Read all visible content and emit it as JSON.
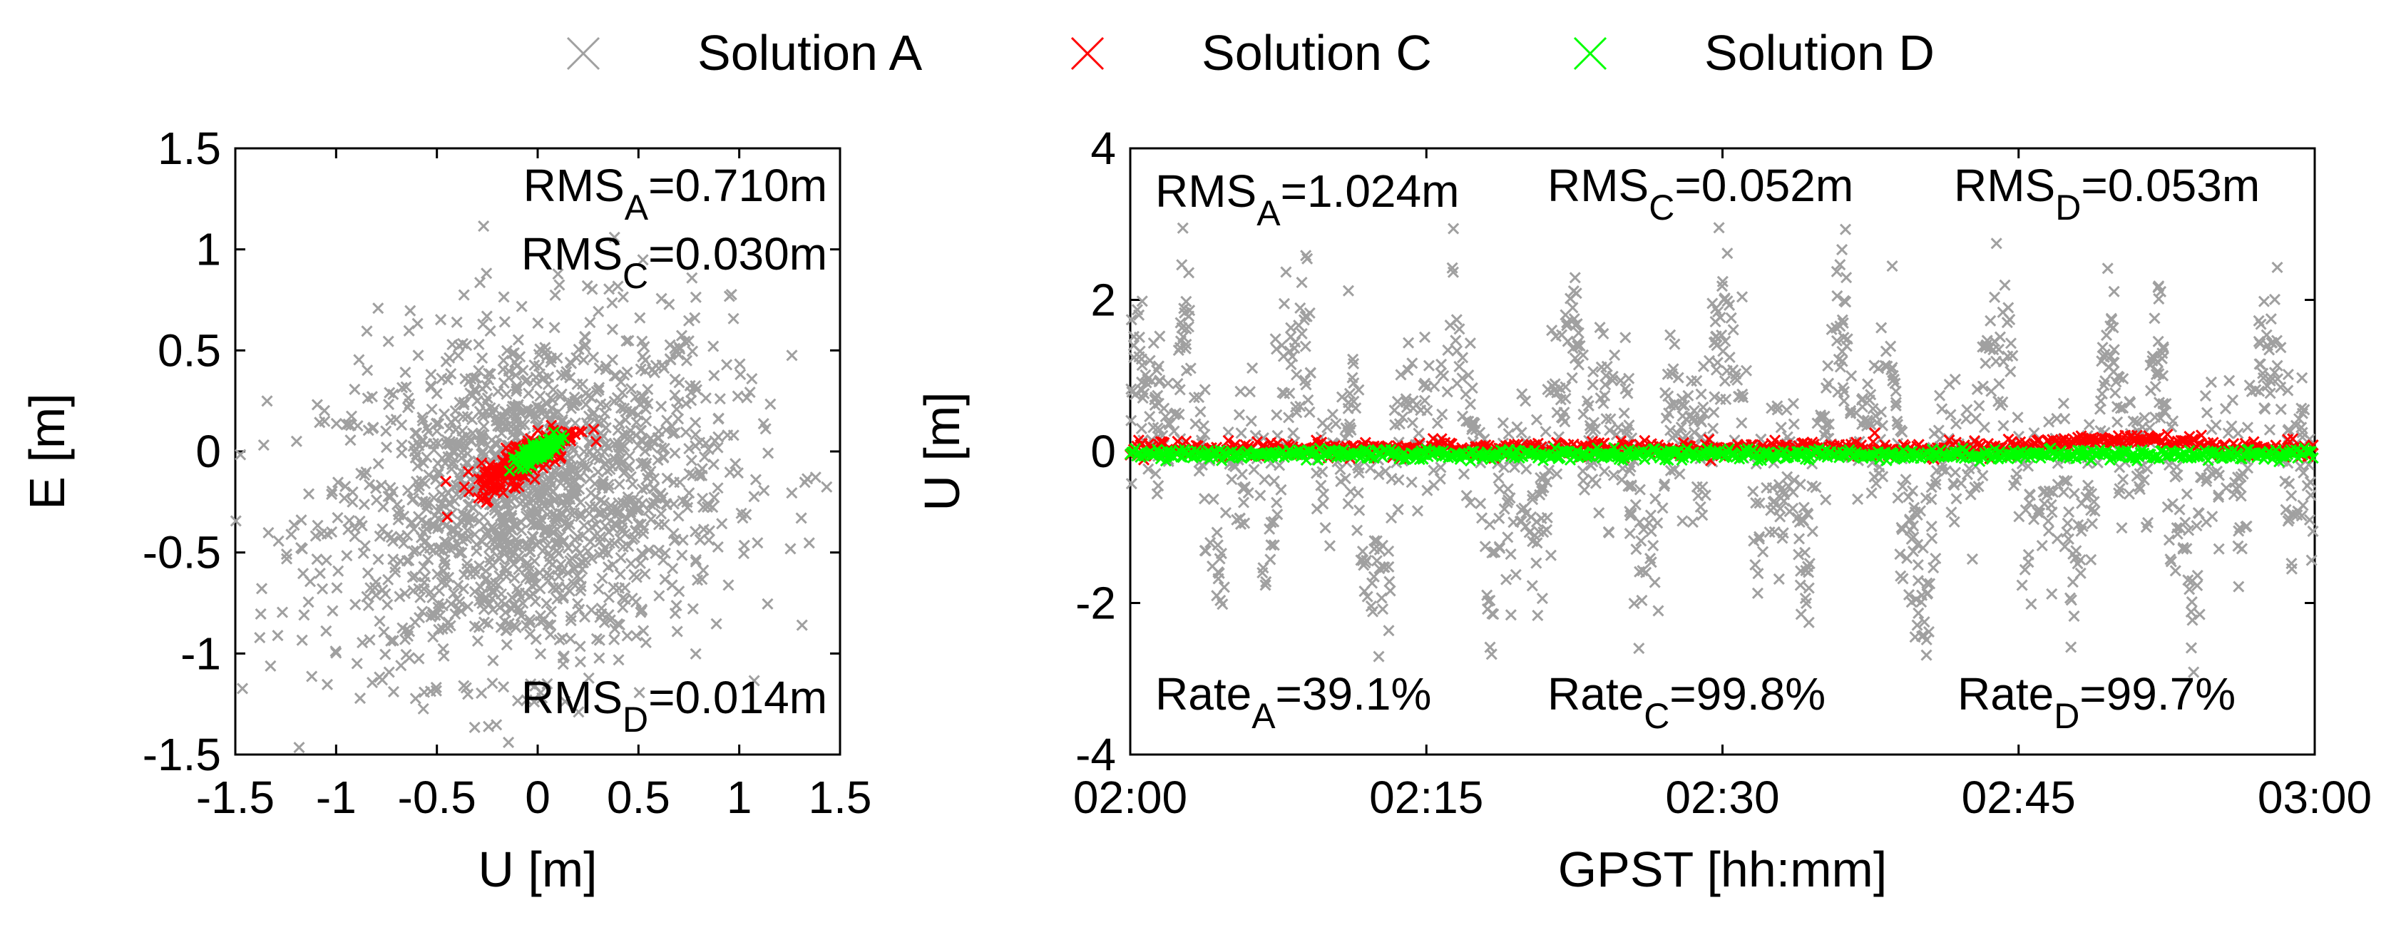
{
  "legend": {
    "entries": [
      {
        "label": "Solution A",
        "color": "#a0a0a0",
        "marker": "x"
      },
      {
        "label": "Solution C",
        "color": "#ff0000",
        "marker": "x"
      },
      {
        "label": "Solution D",
        "color": "#00ff00",
        "marker": "x"
      }
    ]
  },
  "chart_data": [
    {
      "type": "scatter",
      "panel": "left",
      "xlabel": "U [m]",
      "ylabel": "E [m]",
      "xlim": [
        -1.5,
        1.5
      ],
      "ylim": [
        -1.5,
        1.5
      ],
      "xticks": [
        -1.5,
        -1,
        -0.5,
        0,
        0.5,
        1,
        1.5
      ],
      "xtick_labels": [
        "-1.5",
        "-1",
        "-0.5",
        "0",
        "0.5",
        "1",
        "1.5"
      ],
      "yticks": [
        -1.5,
        -1,
        -0.5,
        0,
        0.5,
        1,
        1.5
      ],
      "ytick_labels": [
        "-1.5",
        "-1",
        "-0.5",
        "0",
        "0.5",
        "1",
        "1.5"
      ],
      "grid": false,
      "series": [
        {
          "name": "Solution A",
          "color": "#a0a0a0",
          "spread_u": 0.5,
          "spread_e": 0.42,
          "center_u": -0.05,
          "center_e": -0.22
        },
        {
          "name": "Solution C",
          "color": "#ff0000",
          "spread_u": 0.12,
          "spread_e": 0.05,
          "center_u": -0.05,
          "center_e": -0.03
        },
        {
          "name": "Solution D",
          "color": "#00ff00",
          "spread_u": 0.05,
          "spread_e": 0.02,
          "center_u": 0.0,
          "center_e": 0.0
        }
      ],
      "annotations": [
        {
          "prefix": "RMS",
          "sub": "A",
          "suffix": "=0.710m",
          "pos": "top-right"
        },
        {
          "prefix": "RMS",
          "sub": "C",
          "suffix": "=0.030m",
          "pos": "top-right-2"
        },
        {
          "prefix": "RMS",
          "sub": "D",
          "suffix": "=0.014m",
          "pos": "bottom-right"
        }
      ]
    },
    {
      "type": "scatter",
      "panel": "right",
      "xlabel": "GPST [hh:mm]",
      "ylabel": "U [m]",
      "xlim": [
        0,
        60
      ],
      "ylim": [
        -4,
        4
      ],
      "xticks": [
        0,
        15,
        30,
        45,
        60
      ],
      "xtick_labels": [
        "02:00",
        "02:15",
        "02:30",
        "02:45",
        "03:00"
      ],
      "yticks": [
        -4,
        -2,
        0,
        2,
        4
      ],
      "ytick_labels": [
        "-4",
        "-2",
        "0",
        "2",
        "4"
      ],
      "grid": false,
      "series": [
        {
          "name": "Solution A",
          "color": "#a0a0a0",
          "amplitude": 1.0,
          "availability_pct": 39.1
        },
        {
          "name": "Solution C",
          "color": "#ff0000",
          "amplitude": 0.05,
          "availability_pct": 99.8
        },
        {
          "name": "Solution D",
          "color": "#00ff00",
          "amplitude": 0.05,
          "availability_pct": 99.7
        }
      ],
      "annotations": [
        {
          "prefix": "RMS",
          "sub": "A",
          "suffix": "=1.024m",
          "pos": "top-left"
        },
        {
          "prefix": "RMS",
          "sub": "C",
          "suffix": "=0.052m",
          "pos": "top-center"
        },
        {
          "prefix": "RMS",
          "sub": "D",
          "suffix": "=0.053m",
          "pos": "top-right"
        },
        {
          "prefix": "Rate",
          "sub": "A",
          "suffix": "=39.1%",
          "pos": "bottom-left"
        },
        {
          "prefix": "Rate",
          "sub": "C",
          "suffix": "=99.8%",
          "pos": "bottom-center"
        },
        {
          "prefix": "Rate",
          "sub": "D",
          "suffix": "=99.7%",
          "pos": "bottom-right"
        }
      ]
    }
  ]
}
